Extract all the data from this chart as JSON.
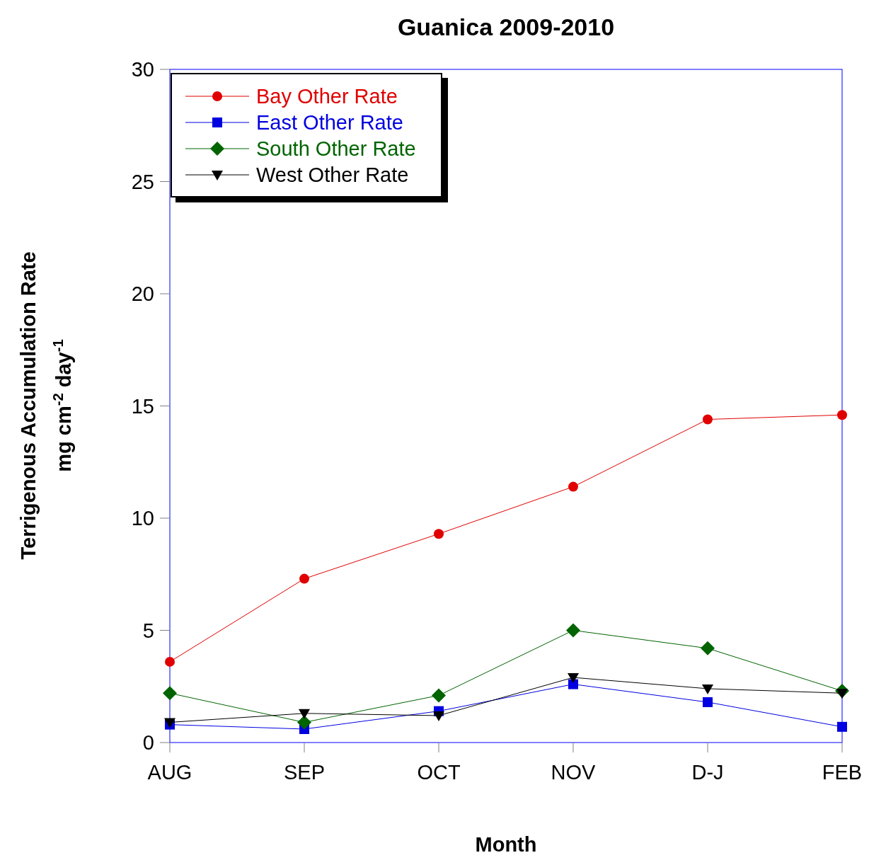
{
  "chart_data": {
    "type": "line",
    "title": "Guanica 2009-2010",
    "xlabel": "Month",
    "ylabel": "Terrigenous Accumulation Rate\nmg cm$^{-2}$ day$^{-1}$",
    "categories": [
      "AUG",
      "SEP",
      "OCT",
      "NOV",
      "D-J",
      "FEB"
    ],
    "ylim": [
      0,
      30
    ],
    "yticks": [
      0,
      5,
      10,
      15,
      20,
      25,
      30
    ],
    "grid": false,
    "legend": "top left",
    "series": [
      {
        "name": "Bay Other Rate",
        "color": "#e00000",
        "marker": "circle",
        "values": [
          3.6,
          7.3,
          9.3,
          11.4,
          14.4,
          14.6
        ]
      },
      {
        "name": "East Other Rate",
        "color": "#0000e0",
        "marker": "square",
        "values": [
          0.8,
          0.6,
          1.4,
          2.6,
          1.8,
          0.7
        ]
      },
      {
        "name": "South Other Rate",
        "color": "#006400",
        "marker": "diamond",
        "values": [
          2.2,
          0.9,
          2.1,
          5.0,
          4.2,
          2.3
        ]
      },
      {
        "name": "West Other Rate",
        "color": "#000000",
        "marker": "triangle-down",
        "values": [
          0.9,
          1.3,
          1.2,
          2.9,
          2.4,
          2.2
        ]
      }
    ]
  }
}
